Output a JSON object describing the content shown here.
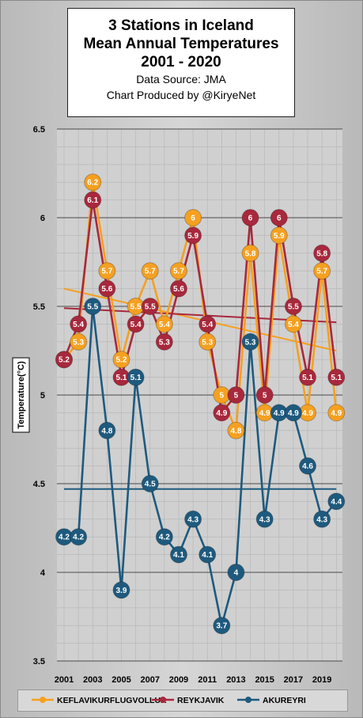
{
  "title": {
    "line1": "3 Stations in Iceland",
    "line2": "Mean Annual Temperatures",
    "line3": "2001 - 2020",
    "source": "Data Source: JMA",
    "credit": "Chart Produced by @KiryeNet"
  },
  "chart_data": {
    "type": "line",
    "x": [
      2001,
      2002,
      2003,
      2004,
      2005,
      2006,
      2007,
      2008,
      2009,
      2010,
      2011,
      2012,
      2013,
      2014,
      2015,
      2016,
      2017,
      2018,
      2019,
      2020
    ],
    "x_tick_labels": [
      "2001",
      "2003",
      "2005",
      "2007",
      "2009",
      "2011",
      "2013",
      "2015",
      "2017",
      "2019"
    ],
    "ylabel": "Temperature(°C)",
    "xlabel": "",
    "ylim": [
      3.5,
      6.5
    ],
    "y_ticks": [
      "3.5",
      "4",
      "4.5",
      "5",
      "5.5",
      "6",
      "6.5"
    ],
    "grid": true,
    "legend_position": "bottom",
    "series": [
      {
        "name": "KEFLAVIKURFLUGVOLLUR",
        "color": "#f5a020",
        "values": [
          5.2,
          5.3,
          6.2,
          5.7,
          5.2,
          5.5,
          5.7,
          5.4,
          5.7,
          6.0,
          5.3,
          5.0,
          4.8,
          5.8,
          4.9,
          5.9,
          5.4,
          4.9,
          5.7,
          4.9
        ],
        "labels": [
          "",
          "5.3",
          "6.2",
          "5.7",
          "5.2",
          "5.5",
          "5.7",
          "5.4",
          "5.7",
          "6",
          "5.3",
          "5",
          "4.8",
          "5.8",
          "4.9",
          "5.9",
          "5.4",
          "4.9",
          "5.7",
          "4.9"
        ],
        "trend": [
          5.6,
          5.25
        ]
      },
      {
        "name": "REYKJAVIK",
        "color": "#a8283c",
        "values": [
          5.2,
          5.4,
          6.1,
          5.6,
          5.1,
          5.4,
          5.5,
          5.3,
          5.6,
          5.9,
          5.4,
          4.9,
          5.0,
          6.0,
          5.0,
          6.0,
          5.5,
          5.1,
          5.8,
          5.1
        ],
        "labels": [
          "5.2",
          "5.4",
          "6.1",
          "5.6",
          "5.1",
          "5.4",
          "5.5",
          "5.3",
          "5.6",
          "5.9",
          "5.4",
          "4.9",
          "5",
          "6",
          "5",
          "6",
          "5.5",
          "5.1",
          "5.8",
          "5.1"
        ],
        "trend": [
          5.49,
          5.41
        ]
      },
      {
        "name": "AKUREYRI",
        "color": "#1e5a7e",
        "values": [
          4.2,
          4.2,
          5.5,
          4.8,
          3.9,
          5.1,
          4.5,
          4.2,
          4.1,
          4.3,
          4.1,
          3.7,
          4.0,
          5.3,
          4.3,
          4.9,
          4.9,
          4.6,
          4.3,
          4.4
        ],
        "labels": [
          "4.2",
          "4.2",
          "5.5",
          "4.8",
          "3.9",
          "5.1",
          "4.5",
          "4.2",
          "4.1",
          "4.3",
          "4.1",
          "3.7",
          "4",
          "5.3",
          "4.3",
          "4.9",
          "4.9",
          "4.6",
          "4.3",
          "4.4"
        ],
        "trend": [
          4.47,
          4.47
        ]
      }
    ]
  }
}
